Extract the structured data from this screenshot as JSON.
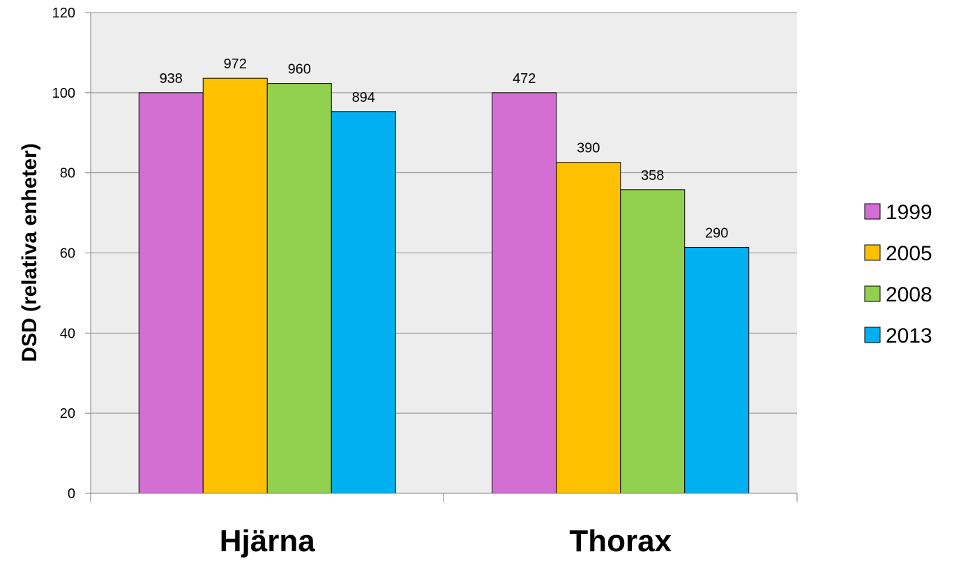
{
  "chart_data": {
    "type": "bar",
    "title": "",
    "xlabel": "",
    "ylabel": "DSD (relativa enheter)",
    "ylim": [
      0,
      120
    ],
    "yticks": [
      "0",
      "20",
      "40",
      "60",
      "80",
      "100",
      "120"
    ],
    "ytick_values": [
      0,
      20,
      40,
      60,
      80,
      100,
      120
    ],
    "grid": true,
    "legend_position": "right",
    "categories": [
      "Hjärna",
      "Thorax"
    ],
    "series": [
      {
        "name": "1999",
        "color": "#d36fd3",
        "values": [
          100,
          100
        ],
        "labels": [
          "938",
          "472"
        ]
      },
      {
        "name": "2005",
        "color": "#ffc000",
        "values": [
          103.6,
          82.6
        ],
        "labels": [
          "972",
          "390"
        ]
      },
      {
        "name": "2008",
        "color": "#92d050",
        "values": [
          102.3,
          75.8
        ],
        "labels": [
          "960",
          "358"
        ]
      },
      {
        "name": "2013",
        "color": "#00b0f0",
        "values": [
          95.3,
          61.4
        ],
        "labels": [
          "894",
          "290"
        ]
      }
    ]
  }
}
